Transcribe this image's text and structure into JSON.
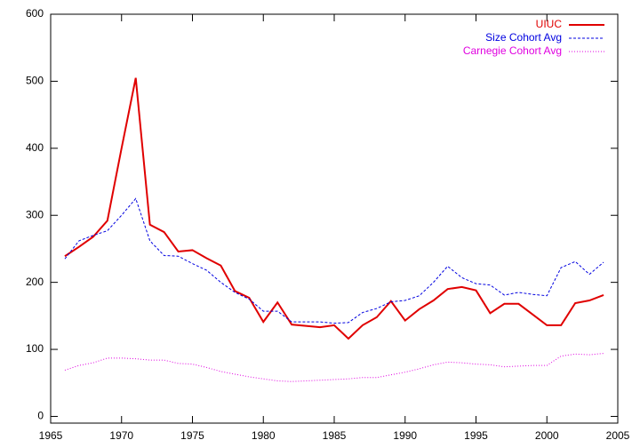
{
  "chart_data": {
    "type": "line",
    "x": [
      1966,
      1967,
      1968,
      1969,
      1970,
      1971,
      1972,
      1973,
      1974,
      1975,
      1976,
      1977,
      1978,
      1979,
      1980,
      1981,
      1982,
      1983,
      1984,
      1985,
      1986,
      1987,
      1988,
      1989,
      1990,
      1991,
      1992,
      1993,
      1994,
      1995,
      1996,
      1997,
      1998,
      1999,
      2000,
      2001,
      2002,
      2003,
      2004
    ],
    "series": [
      {
        "name": "UIUC",
        "color": "#e00000",
        "values": [
          239,
          253,
          268,
          292,
          400,
          505,
          286,
          275,
          246,
          248,
          236,
          225,
          187,
          177,
          141,
          170,
          137,
          135,
          133,
          136,
          116,
          136,
          148,
          172,
          143,
          160,
          173,
          190,
          193,
          188,
          154,
          168,
          168,
          152,
          136,
          136,
          169,
          173,
          181
        ]
      },
      {
        "name": "Size Cohort Avg",
        "color": "#0000e0",
        "values": [
          235,
          262,
          270,
          277,
          300,
          325,
          262,
          240,
          239,
          228,
          218,
          200,
          185,
          175,
          157,
          157,
          141,
          141,
          141,
          139,
          140,
          155,
          161,
          171,
          173,
          180,
          200,
          224,
          207,
          198,
          196,
          181,
          185,
          182,
          180,
          222,
          231,
          212,
          230
        ]
      },
      {
        "name": "Carnegie Cohort Avg",
        "color": "#e000e0",
        "values": [
          69,
          76,
          80,
          87,
          87,
          86,
          84,
          84,
          79,
          78,
          73,
          67,
          63,
          59,
          56,
          53,
          52,
          53,
          54,
          55,
          56,
          58,
          58,
          62,
          66,
          71,
          77,
          81,
          80,
          78,
          77,
          74,
          75,
          76,
          76,
          90,
          93,
          92,
          94
        ]
      }
    ],
    "xlim": [
      1965,
      2005
    ],
    "xticks": [
      1965,
      1970,
      1975,
      1980,
      1985,
      1990,
      1995,
      2000,
      2005
    ],
    "ylim": [
      -10,
      600
    ],
    "yticks": [
      0,
      100,
      200,
      300,
      400,
      500,
      600
    ],
    "legend": "top-right"
  }
}
